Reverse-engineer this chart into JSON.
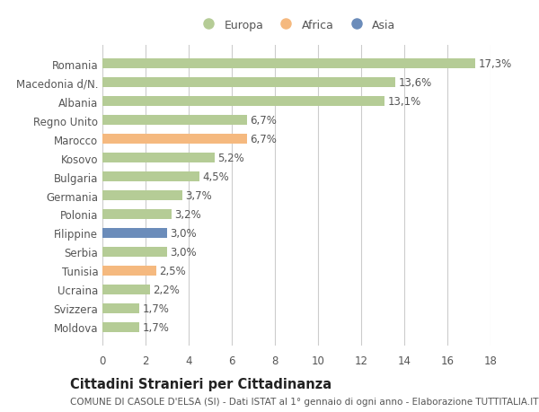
{
  "countries": [
    "Romania",
    "Macedonia d/N.",
    "Albania",
    "Regno Unito",
    "Marocco",
    "Kosovo",
    "Bulgaria",
    "Germania",
    "Polonia",
    "Filippine",
    "Serbia",
    "Tunisia",
    "Ucraina",
    "Svizzera",
    "Moldova"
  ],
  "values": [
    17.3,
    13.6,
    13.1,
    6.7,
    6.7,
    5.2,
    4.5,
    3.7,
    3.2,
    3.0,
    3.0,
    2.5,
    2.2,
    1.7,
    1.7
  ],
  "categories": [
    "Europa",
    "Europa",
    "Europa",
    "Europa",
    "Africa",
    "Europa",
    "Europa",
    "Europa",
    "Europa",
    "Asia",
    "Europa",
    "Africa",
    "Europa",
    "Europa",
    "Europa"
  ],
  "colors": {
    "Europa": "#b5cc96",
    "Africa": "#f5b97f",
    "Asia": "#6b8cba"
  },
  "bar_height": 0.55,
  "xlim": [
    0,
    18
  ],
  "xticks": [
    0,
    2,
    4,
    6,
    8,
    10,
    12,
    14,
    16,
    18
  ],
  "title": "Cittadini Stranieri per Cittadinanza",
  "subtitle": "COMUNE DI CASOLE D'ELSA (SI) - Dati ISTAT al 1° gennaio di ogni anno - Elaborazione TUTTITALIA.IT",
  "background_color": "#ffffff",
  "grid_color": "#cccccc",
  "text_color": "#555555",
  "label_fontsize": 8.5,
  "title_fontsize": 10.5,
  "subtitle_fontsize": 7.5,
  "legend_order": [
    "Europa",
    "Africa",
    "Asia"
  ],
  "legend_colors": [
    "#b5cc96",
    "#f5b97f",
    "#6b8cba"
  ]
}
